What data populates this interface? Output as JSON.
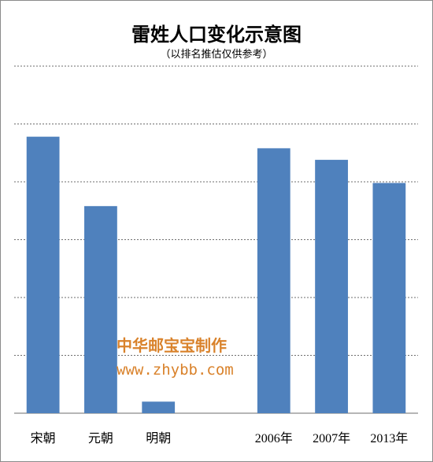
{
  "chart_data": {
    "type": "bar",
    "title": "雷姓人口变化示意图",
    "subtitle": "（以排名推估仅供参考）",
    "categories": [
      "宋朝",
      "元朝",
      "明朝",
      "",
      "2006年",
      "2007年",
      "2013年"
    ],
    "values": [
      47.8,
      35.8,
      2.0,
      null,
      45.8,
      43.8,
      39.8
    ],
    "ylim": [
      0,
      60
    ],
    "grid": true,
    "bar_color": "#4f81bd"
  },
  "watermark": {
    "line1": "中华邮宝宝制作",
    "line2": "www.zhybb.com",
    "color": "#d9822b"
  }
}
